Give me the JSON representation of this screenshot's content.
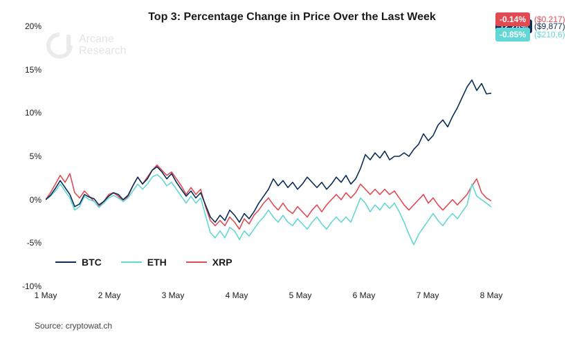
{
  "title": "Top 3: Percentage Change in Price Over the Last Week",
  "watermark": {
    "line1": "Arcane",
    "line2": "Research"
  },
  "source": "Source: cryptowat.ch",
  "chart": {
    "type": "line",
    "y_axis": {
      "min": -10,
      "max": 20,
      "step": 5,
      "unit": "%",
      "labels": [
        "20%",
        "15%",
        "10%",
        "5%",
        "0%",
        "-5%",
        "-10%"
      ],
      "label_fontsize": 12,
      "zero_line_color": "#d0d0d0"
    },
    "x_axis": {
      "categories": [
        "1 May",
        "2 May",
        "3 May",
        "4 May",
        "5 May",
        "6 May",
        "7 May",
        "8 May"
      ],
      "label_fontsize": 12,
      "num_points": 93
    },
    "background_color": "#ffffff",
    "line_width": 1.6,
    "legend": {
      "items": [
        {
          "key": "btc",
          "label": "BTC"
        },
        {
          "key": "eth",
          "label": "ETH"
        },
        {
          "key": "xrp",
          "label": "XRP"
        }
      ],
      "fontsize": 14
    },
    "series": {
      "btc": {
        "label": "BTC",
        "color": "#0a2c57",
        "end_value_pct": "12.28%",
        "end_price": "($9,877)",
        "values": [
          0.0,
          0.5,
          1.3,
          2.2,
          1.4,
          0.6,
          -0.8,
          -0.5,
          0.6,
          0.3,
          0.1,
          -0.6,
          -0.2,
          0.4,
          0.8,
          0.6,
          0.0,
          0.5,
          1.6,
          2.6,
          1.8,
          2.4,
          3.4,
          3.8,
          3.2,
          2.4,
          3.0,
          2.0,
          1.2,
          0.4,
          1.0,
          0.2,
          0.8,
          -0.6,
          -2.0,
          -2.6,
          -1.8,
          -2.4,
          -1.2,
          -1.8,
          -2.6,
          -1.6,
          -2.2,
          -1.4,
          -0.4,
          0.4,
          1.2,
          2.4,
          1.6,
          2.2,
          1.4,
          2.0,
          1.2,
          1.8,
          2.6,
          2.0,
          1.4,
          2.0,
          1.2,
          1.8,
          2.6,
          2.0,
          2.8,
          1.8,
          2.4,
          3.6,
          5.2,
          4.6,
          5.4,
          4.8,
          5.6,
          4.6,
          5.0,
          5.0,
          5.4,
          5.0,
          5.8,
          6.4,
          7.6,
          6.8,
          7.4,
          8.6,
          9.2,
          8.4,
          9.6,
          10.6,
          11.8,
          13.0,
          13.8,
          12.6,
          13.4,
          12.2,
          12.28
        ]
      },
      "eth": {
        "label": "ETH",
        "color": "#63d7d6",
        "end_value_pct": "-0.85%",
        "end_price": "($210,6)",
        "values": [
          0.0,
          0.4,
          1.0,
          1.8,
          1.0,
          0.2,
          -1.2,
          -0.8,
          0.4,
          0.0,
          -0.2,
          -0.9,
          -0.4,
          0.2,
          0.5,
          0.2,
          -0.2,
          0.2,
          1.0,
          1.8,
          1.2,
          1.8,
          2.6,
          2.9,
          2.4,
          1.6,
          2.0,
          1.2,
          0.4,
          -0.4,
          0.4,
          -0.4,
          0.2,
          -1.8,
          -3.8,
          -4.4,
          -3.6,
          -4.4,
          -3.2,
          -3.6,
          -4.6,
          -3.6,
          -4.2,
          -3.4,
          -2.6,
          -2.0,
          -1.2,
          -2.0,
          -2.6,
          -1.8,
          -2.6,
          -3.0,
          -2.2,
          -2.8,
          -3.4,
          -2.6,
          -2.0,
          -2.8,
          -3.4,
          -2.6,
          -2.0,
          -2.6,
          -2.0,
          -2.6,
          -1.2,
          0.2,
          -0.4,
          -1.4,
          -0.6,
          -1.2,
          -0.4,
          -1.0,
          -0.4,
          -1.4,
          -2.6,
          -4.0,
          -5.2,
          -4.0,
          -3.2,
          -2.4,
          -1.6,
          -2.4,
          -3.0,
          -2.2,
          -1.6,
          -2.2,
          -1.4,
          -0.6,
          1.8,
          0.4,
          0.0,
          -0.4,
          -0.85
        ]
      },
      "xrp": {
        "label": "XRP",
        "color": "#e04a52",
        "end_value_pct": "-0.14%",
        "end_price": "($0.217)",
        "values": [
          0.0,
          0.8,
          1.8,
          2.8,
          2.0,
          3.0,
          0.8,
          0.2,
          1.0,
          0.4,
          -0.2,
          -0.8,
          -0.2,
          0.6,
          0.8,
          0.4,
          -0.2,
          0.4,
          1.6,
          2.6,
          1.8,
          2.6,
          3.4,
          4.0,
          3.4,
          2.8,
          3.2,
          2.4,
          1.6,
          0.6,
          1.4,
          0.6,
          1.2,
          -0.8,
          -2.4,
          -3.0,
          -2.4,
          -3.0,
          -2.0,
          -2.6,
          -3.4,
          -2.2,
          -2.8,
          -1.8,
          -1.2,
          -0.4,
          0.2,
          -0.6,
          -1.2,
          -0.4,
          -1.2,
          -1.6,
          -0.8,
          -1.4,
          -2.0,
          -1.2,
          -0.6,
          -1.4,
          -0.6,
          -0.0,
          0.6,
          0.0,
          0.8,
          0.2,
          0.8,
          1.8,
          1.2,
          0.6,
          1.2,
          0.6,
          1.2,
          0.6,
          1.0,
          0.2,
          -0.6,
          -1.2,
          -0.6,
          0.0,
          0.6,
          -0.4,
          0.2,
          -0.6,
          -1.2,
          -0.6,
          0.0,
          -0.6,
          0.0,
          0.6,
          1.6,
          2.4,
          0.8,
          0.2,
          -0.14
        ]
      }
    }
  }
}
